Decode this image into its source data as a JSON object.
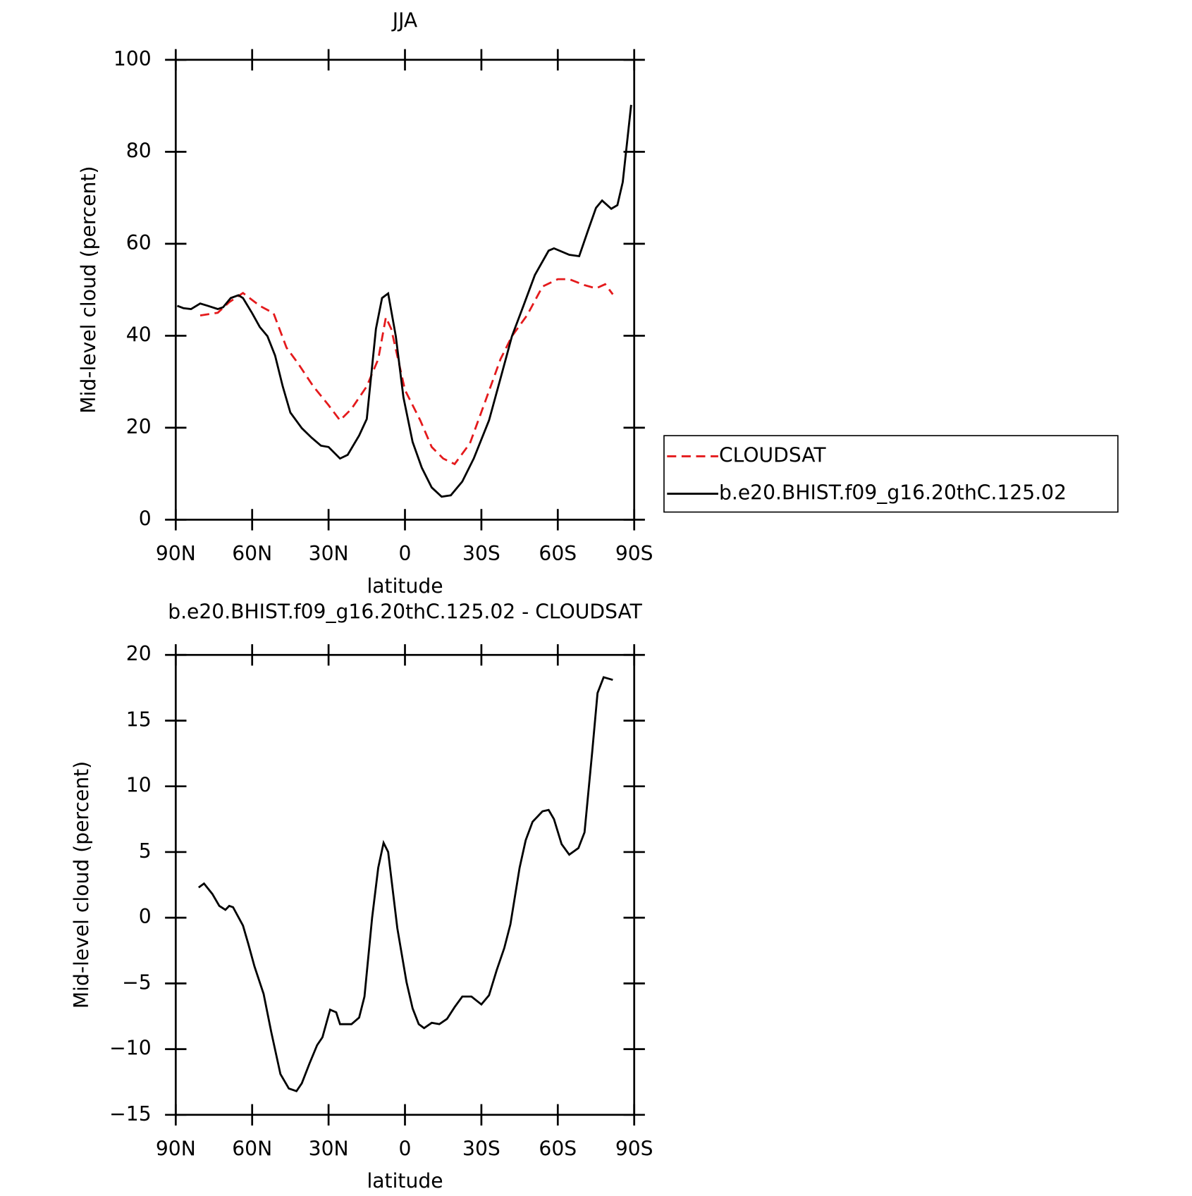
{
  "chart_data": [
    {
      "type": "line",
      "title": "JJA",
      "ylabel": "Mid-level cloud (percent)",
      "xlabel": "latitude",
      "xlim": [
        90,
        -90
      ],
      "xticks": [
        {
          "value": 90,
          "label": "90N"
        },
        {
          "value": 60,
          "label": "60N"
        },
        {
          "value": 30,
          "label": "30N"
        },
        0,
        {
          "value": -30,
          "label": "30S"
        },
        {
          "value": -60,
          "label": "60S"
        },
        {
          "value": -90,
          "label": "90S"
        }
      ],
      "ylim": [
        0,
        100
      ],
      "yticks": [
        0,
        20,
        40,
        60,
        80,
        100
      ],
      "series": [
        {
          "name": "CLOUDSAT",
          "color": "#e41a1c",
          "dash": true,
          "x": [
            80.4,
            73.5,
            69,
            63.6,
            57,
            51.6,
            46.5,
            42,
            36,
            30,
            25.5,
            21,
            15,
            10.5,
            7.5,
            5.4,
            0,
            -6,
            -10.5,
            -15,
            -19.5,
            -25.5,
            -31.5,
            -37.5,
            -42,
            -48,
            -54,
            -60,
            -64.5,
            -70.5,
            -75,
            -78.6,
            -81.6
          ],
          "values": [
            44.4,
            45,
            47.3,
            49.3,
            46.5,
            44.9,
            37.4,
            34,
            29,
            24.9,
            21.6,
            24.1,
            29,
            34.9,
            44,
            41.5,
            28.2,
            21.6,
            15.8,
            13.3,
            12.1,
            16.6,
            25.7,
            34.9,
            39.9,
            44.5,
            50.7,
            52.3,
            52.3,
            51,
            50.3,
            51.2,
            49
          ]
        },
        {
          "name": "b.e20.BHIST.f09_g16.20thC.125.02",
          "color": "#000000",
          "dash": false,
          "x": [
            89.4,
            87,
            84,
            80.4,
            77.4,
            73.5,
            71.4,
            68.4,
            65.4,
            63.6,
            60,
            57,
            54,
            51,
            48,
            45,
            40.5,
            36.6,
            33,
            30,
            25.5,
            22.5,
            18,
            15,
            11.4,
            9,
            6.6,
            3.6,
            0.6,
            -3,
            -6.6,
            -10.5,
            -14.4,
            -18,
            -22.5,
            -27,
            -33,
            -37.5,
            -42,
            -46.5,
            -51,
            -56.4,
            -58.5,
            -64.5,
            -68.4,
            -72,
            -75,
            -77.4,
            -81,
            -83.4,
            -85.5,
            -88.8
          ],
          "values": [
            46.5,
            46,
            45.8,
            47,
            46.5,
            45.8,
            46.2,
            48.2,
            48.8,
            48.2,
            44.9,
            41.9,
            39.9,
            35.7,
            29,
            23.3,
            19.9,
            17.8,
            16.1,
            15.8,
            13.3,
            14.1,
            18.3,
            21.9,
            41.5,
            48.2,
            49.2,
            39.9,
            26.6,
            16.9,
            11.3,
            7,
            5,
            5.3,
            8.3,
            13.3,
            21.6,
            30.7,
            39.9,
            46.5,
            53.2,
            58.5,
            59,
            57.6,
            57.3,
            63.1,
            67.8,
            69.4,
            67.6,
            68.4,
            73.4,
            90.2
          ]
        }
      ]
    },
    {
      "type": "line",
      "title": "b.e20.BHIST.f09_g16.20thC.125.02 - CLOUDSAT",
      "ylabel": "Mid-level cloud (percent)",
      "xlabel": "latitude",
      "xlim": [
        90,
        -90
      ],
      "xticks": [
        {
          "value": 90,
          "label": "90N"
        },
        {
          "value": 60,
          "label": "60N"
        },
        {
          "value": 30,
          "label": "30N"
        },
        0,
        {
          "value": -30,
          "label": "30S"
        },
        {
          "value": -60,
          "label": "60S"
        },
        {
          "value": -90,
          "label": "90S"
        }
      ],
      "ylim": [
        -15,
        20
      ],
      "yticks": [
        {
          "value": -15,
          "label": "−15"
        },
        {
          "value": -10,
          "label": "−10"
        },
        {
          "value": -5,
          "label": "−5"
        },
        0,
        5,
        10,
        15,
        20
      ],
      "series": [
        {
          "color": "#000000",
          "dash": false,
          "x": [
            81,
            78.9,
            75.6,
            72.9,
            70.5,
            69,
            67.5,
            63.6,
            61.5,
            59.1,
            55.5,
            52.5,
            48.9,
            45.6,
            42.6,
            40.5,
            37.5,
            34.5,
            32.4,
            29.4,
            27,
            25.5,
            21,
            18,
            15.9,
            12.9,
            10.5,
            8.4,
            6.6,
            3,
            -0.6,
            -3,
            -5.4,
            -7.5,
            -10.5,
            -13.5,
            -16.5,
            -19.5,
            -22.5,
            -26.1,
            -30,
            -33,
            -36,
            -39,
            -41.4,
            -45,
            -47.4,
            -50.1,
            -54,
            -56.4,
            -58.5,
            -61.5,
            -64.5,
            -68.1,
            -70.5,
            -73.5,
            -75.6,
            -78,
            -81.6
          ],
          "values": [
            2.3,
            2.6,
            1.8,
            0.9,
            0.6,
            0.9,
            0.8,
            -0.6,
            -2,
            -3.7,
            -5.8,
            -8.7,
            -11.9,
            -13,
            -13.2,
            -12.6,
            -11.1,
            -9.7,
            -9.1,
            -7,
            -7.2,
            -8.1,
            -8.1,
            -7.6,
            -6,
            0,
            3.8,
            5.7,
            5,
            -0.8,
            -4.9,
            -6.9,
            -8.1,
            -8.4,
            -8,
            -8.1,
            -7.7,
            -6.8,
            -6,
            -6,
            -6.6,
            -5.9,
            -4,
            -2.3,
            -0.5,
            3.8,
            5.9,
            7.3,
            8.1,
            8.2,
            7.5,
            5.6,
            4.8,
            5.3,
            6.5,
            12.6,
            17.1,
            18.3,
            18.1
          ]
        }
      ]
    }
  ]
}
